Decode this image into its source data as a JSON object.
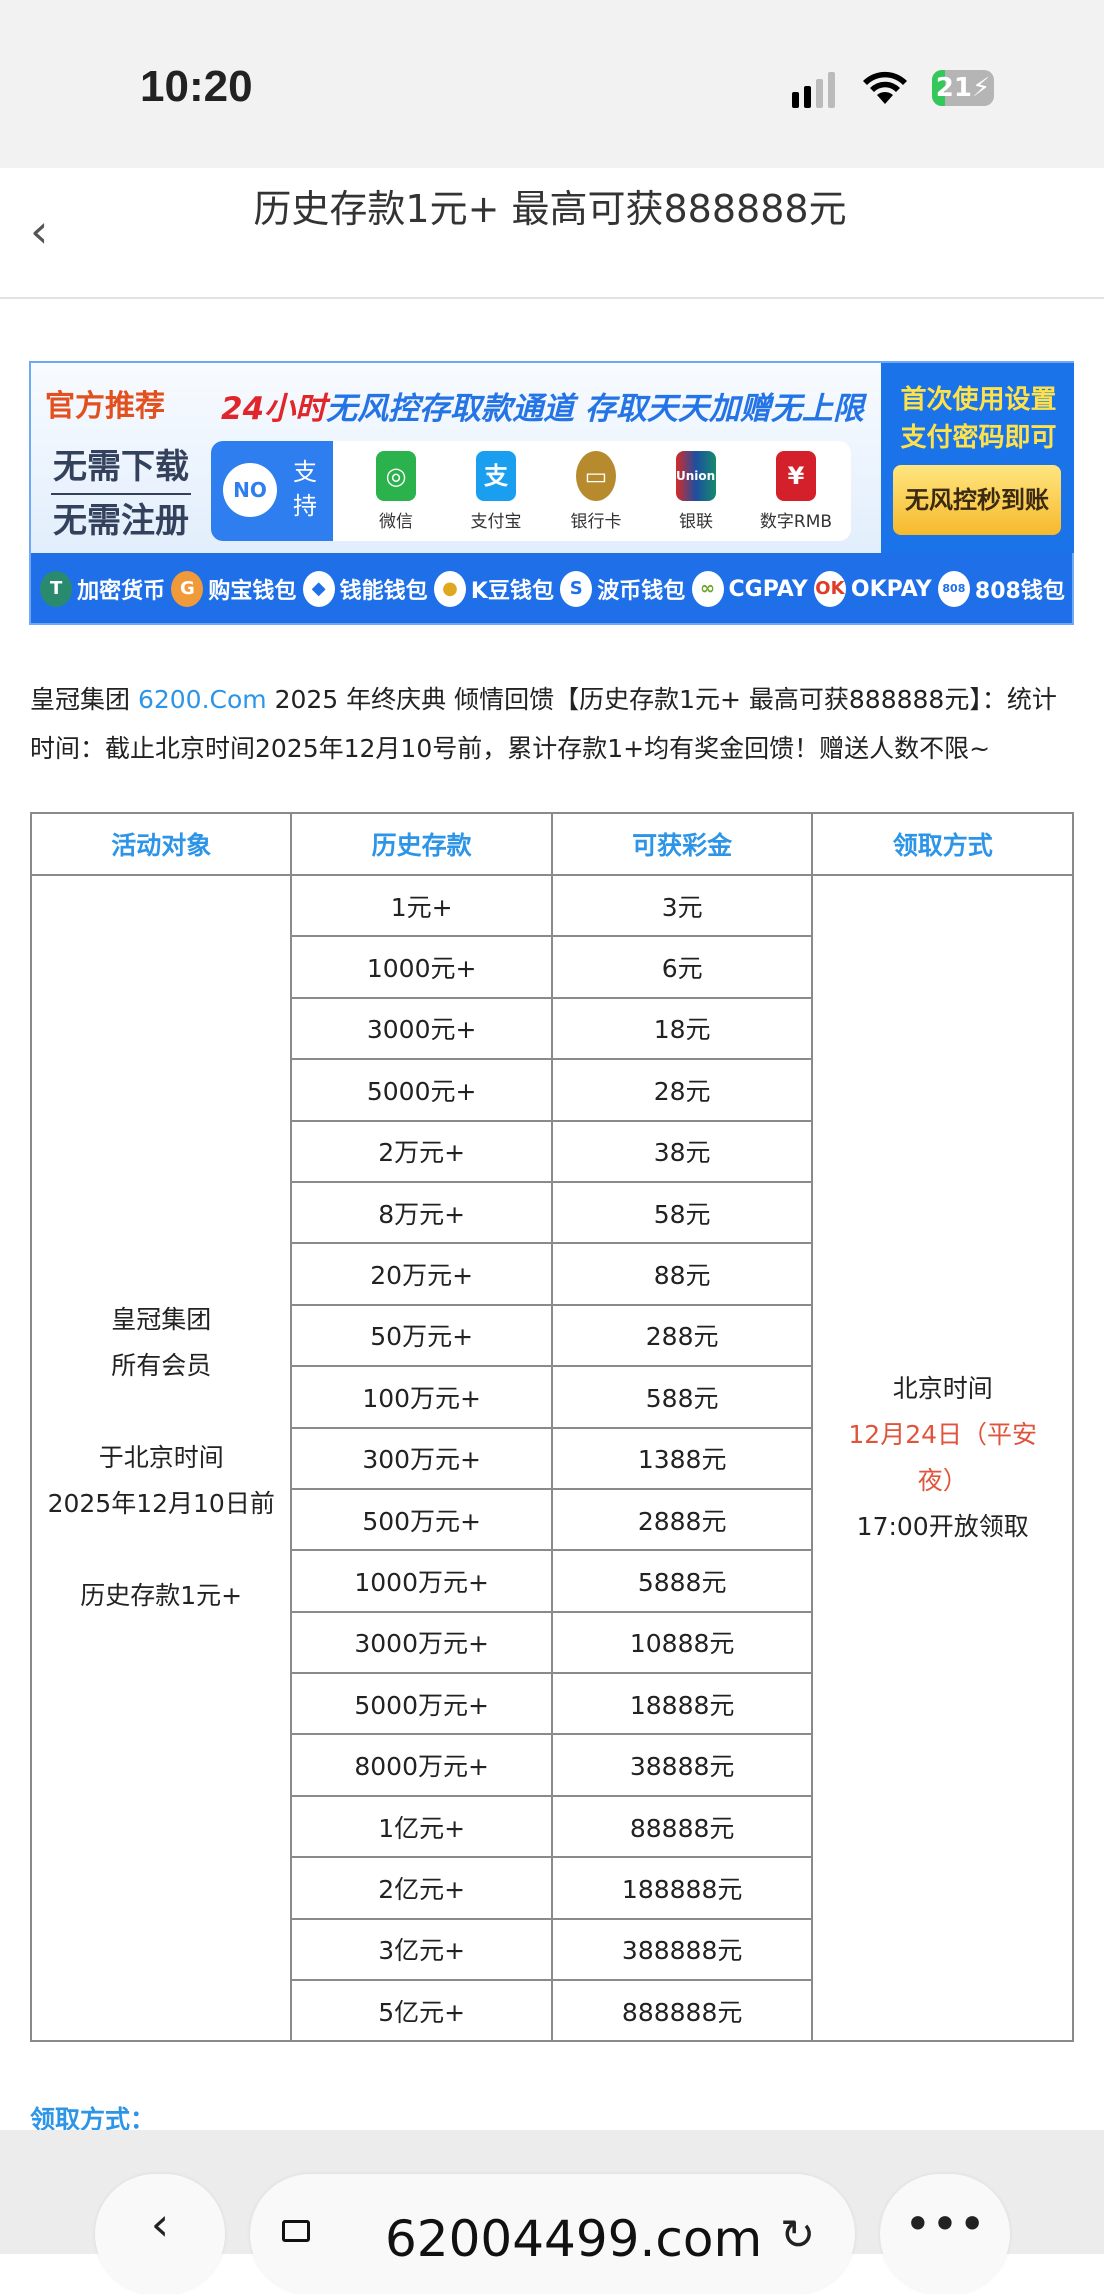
{
  "status_bar": {
    "time": "10:20",
    "battery": "21",
    "battery_level_percent": 21
  },
  "nav": {
    "back_icon": "chevron-left-icon",
    "title": "历史存款1元+ 最高可获888888元"
  },
  "banner": {
    "left_top": "官方推荐",
    "left_lines": [
      "无需下载",
      "无需注册"
    ],
    "headline_red": "24小时",
    "headline_blue": "无风控存取款通道 存取天天加赠无上限",
    "support_badge": "NO",
    "support_label": "支持",
    "payments": [
      {
        "label": "微信",
        "color": "#2bb24c"
      },
      {
        "label": "支付宝",
        "color": "#1a9ff0"
      },
      {
        "label": "银行卡",
        "color": "#b88a2e"
      },
      {
        "label": "银联",
        "color": "#d42a2a"
      },
      {
        "label": "数字RMB",
        "color": "#d4202a"
      }
    ],
    "right_text": "首次使用设置支付密码即可",
    "right_button": "无风控秒到账",
    "wallets": [
      "加密货币",
      "购宝钱包",
      "钱能钱包",
      "K豆钱包",
      "波币钱包",
      "CGPAY",
      "OKPAY",
      "808钱包"
    ]
  },
  "intro": {
    "prefix": "皇冠集团 ",
    "link": "6200.Com",
    "text": " 2025 年终庆典 倾情回馈【历史存款1元+ 最高可获888888元】：统计时间：截止北京时间2025年12月10号前，累计存款1+均有奖金回馈！赠送人数不限~"
  },
  "table": {
    "headers": [
      "活动对象",
      "历史存款",
      "可获彩金",
      "领取方式"
    ],
    "target": [
      "皇冠集团",
      "所有会员",
      "",
      "于北京时间",
      "2025年12月10日前",
      "",
      "历史存款1元+"
    ],
    "rows": [
      [
        "1元+",
        "3元"
      ],
      [
        "1000元+",
        "6元"
      ],
      [
        "3000元+",
        "18元"
      ],
      [
        "5000元+",
        "28元"
      ],
      [
        "2万元+",
        "38元"
      ],
      [
        "8万元+",
        "58元"
      ],
      [
        "20万元+",
        "88元"
      ],
      [
        "50万元+",
        "288元"
      ],
      [
        "100万元+",
        "588元"
      ],
      [
        "300万元+",
        "1388元"
      ],
      [
        "500万元+",
        "2888元"
      ],
      [
        "1000万元+",
        "5888元"
      ],
      [
        "3000万元+",
        "10888元"
      ],
      [
        "5000万元+",
        "18888元"
      ],
      [
        "8000万元+",
        "38888元"
      ],
      [
        "1亿元+",
        "88888元"
      ],
      [
        "2亿元+",
        "188888元"
      ],
      [
        "3亿元+",
        "388888元"
      ],
      [
        "5亿元+",
        "888888元"
      ]
    ],
    "claim": {
      "line1": "北京时间",
      "date": "12月24日（平安夜）",
      "line3": "17:00开放领取"
    }
  },
  "footer_label": "领取方式：",
  "browser": {
    "url": "62004499.com"
  },
  "colors": {
    "accent": "#2d95e8",
    "red": "#e0543c",
    "banner_blue": "#1e6fe8"
  }
}
